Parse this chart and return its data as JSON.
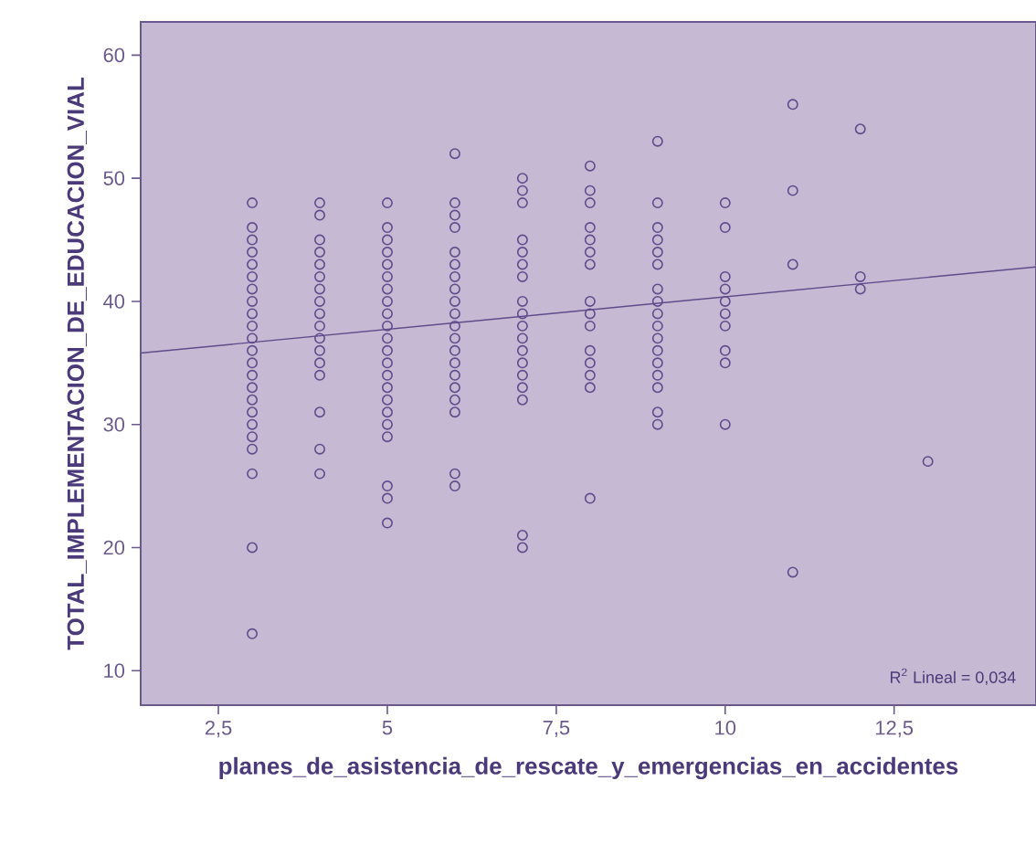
{
  "chart_data": {
    "type": "scatter",
    "xlabel": "planes_de_asistencia_de_rescate_y_emergencias_en_accidentes",
    "ylabel": "TOTAL_IMPLEMENTACION_DE_EDUCACION_VIAL",
    "annotations": [
      "R$^{2}$ Lineal = 0,034"
    ],
    "xlim": [
      1.35,
      14.6
    ],
    "ylim": [
      7.2,
      62.7
    ],
    "xticks": [
      {
        "value": 2.5,
        "label": "2,5"
      },
      5,
      {
        "value": 7.5,
        "label": "7,5"
      },
      10,
      {
        "value": 12.5,
        "label": "12,5"
      }
    ],
    "yticks": [
      10,
      20,
      30,
      40,
      50,
      60
    ],
    "grid": false,
    "marker": "circle",
    "series": [
      {
        "color": "#5f4b8b",
        "x": [
          3,
          3,
          3,
          3,
          3,
          3,
          3,
          3,
          3,
          3,
          3,
          3,
          3,
          3,
          3,
          3,
          3,
          3,
          3,
          3,
          3,
          3,
          3,
          4,
          4,
          4,
          4,
          4,
          4,
          4,
          4,
          4,
          4,
          4,
          4,
          4,
          4,
          4,
          4,
          4,
          5,
          5,
          5,
          5,
          5,
          5,
          5,
          5,
          5,
          5,
          5,
          5,
          5,
          5,
          5,
          5,
          5,
          5,
          5,
          5,
          5,
          5,
          6,
          6,
          6,
          6,
          6,
          6,
          6,
          6,
          6,
          6,
          6,
          6,
          6,
          6,
          6,
          6,
          6,
          6,
          6,
          6,
          7,
          7,
          7,
          7,
          7,
          7,
          7,
          7,
          7,
          7,
          7,
          7,
          7,
          7,
          7,
          7,
          7,
          7,
          8,
          8,
          8,
          8,
          8,
          8,
          8,
          8,
          8,
          8,
          8,
          8,
          8,
          8,
          8,
          9,
          9,
          9,
          9,
          9,
          9,
          9,
          9,
          9,
          9,
          9,
          9,
          9,
          9,
          9,
          9,
          9,
          10,
          10,
          10,
          10,
          10,
          10,
          10,
          10,
          10,
          10,
          11,
          11,
          11,
          11,
          12,
          12,
          12,
          13
        ],
        "values": [
          48,
          46,
          45,
          44,
          43,
          42,
          41,
          40,
          39,
          38,
          37,
          36,
          35,
          34,
          33,
          32,
          31,
          30,
          29,
          28,
          26,
          20,
          13,
          48,
          47,
          45,
          44,
          43,
          42,
          41,
          40,
          39,
          38,
          37,
          36,
          35,
          34,
          31,
          28,
          26,
          48,
          46,
          45,
          44,
          43,
          42,
          41,
          40,
          39,
          38,
          37,
          36,
          35,
          34,
          33,
          32,
          31,
          30,
          29,
          25,
          24,
          22,
          52,
          48,
          47,
          46,
          44,
          43,
          42,
          41,
          40,
          39,
          38,
          37,
          36,
          35,
          34,
          33,
          32,
          31,
          26,
          25,
          50,
          49,
          48,
          45,
          44,
          43,
          42,
          40,
          39,
          38,
          37,
          36,
          35,
          34,
          33,
          32,
          21,
          20,
          51,
          49,
          48,
          46,
          45,
          44,
          43,
          40,
          39,
          38,
          36,
          35,
          34,
          33,
          24,
          53,
          48,
          46,
          45,
          44,
          43,
          41,
          40,
          39,
          38,
          37,
          36,
          35,
          34,
          33,
          31,
          30,
          48,
          46,
          42,
          41,
          40,
          39,
          38,
          36,
          35,
          30,
          56,
          49,
          43,
          18,
          54,
          42,
          41,
          27
        ]
      },
      {
        "type": "line",
        "marker": "none",
        "color": "#5f4b8b",
        "x": [
          1.35,
          14.6
        ],
        "values": [
          35.8,
          42.8
        ]
      }
    ]
  }
}
